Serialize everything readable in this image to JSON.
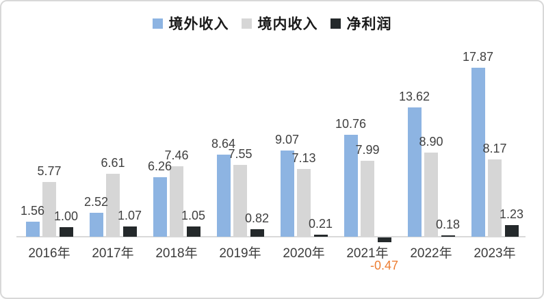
{
  "chart_data": {
    "type": "bar",
    "title": "",
    "xlabel": "",
    "ylabel": "",
    "categories": [
      "2016年",
      "2017年",
      "2018年",
      "2019年",
      "2020年",
      "2021年",
      "2022年",
      "2023年"
    ],
    "series": [
      {
        "name": "境外收入",
        "color": "#8DB4E2",
        "values": [
          1.56,
          2.52,
          6.26,
          8.64,
          9.07,
          10.76,
          13.62,
          17.87
        ]
      },
      {
        "name": "境内收入",
        "color": "#D6D6D6",
        "values": [
          5.77,
          6.61,
          7.46,
          7.55,
          7.13,
          7.99,
          8.9,
          8.17
        ]
      },
      {
        "name": "净利润",
        "color": "#24292B",
        "values": [
          1.0,
          1.07,
          1.05,
          0.82,
          0.21,
          -0.47,
          0.18,
          1.23
        ]
      }
    ],
    "value_label_decimals": 2,
    "legend_position": "top",
    "grid": false,
    "baseline": 0,
    "ylim": [
      -0.47,
      17.87
    ],
    "colors": {
      "value_label": "#3F3F3F",
      "negative_value_label": "#ED7D31",
      "axis_line": "#D9D9D9",
      "x_label": "#3C3C3C",
      "frame_border": "#D8D8D8",
      "background": "#FFFFFF"
    }
  }
}
